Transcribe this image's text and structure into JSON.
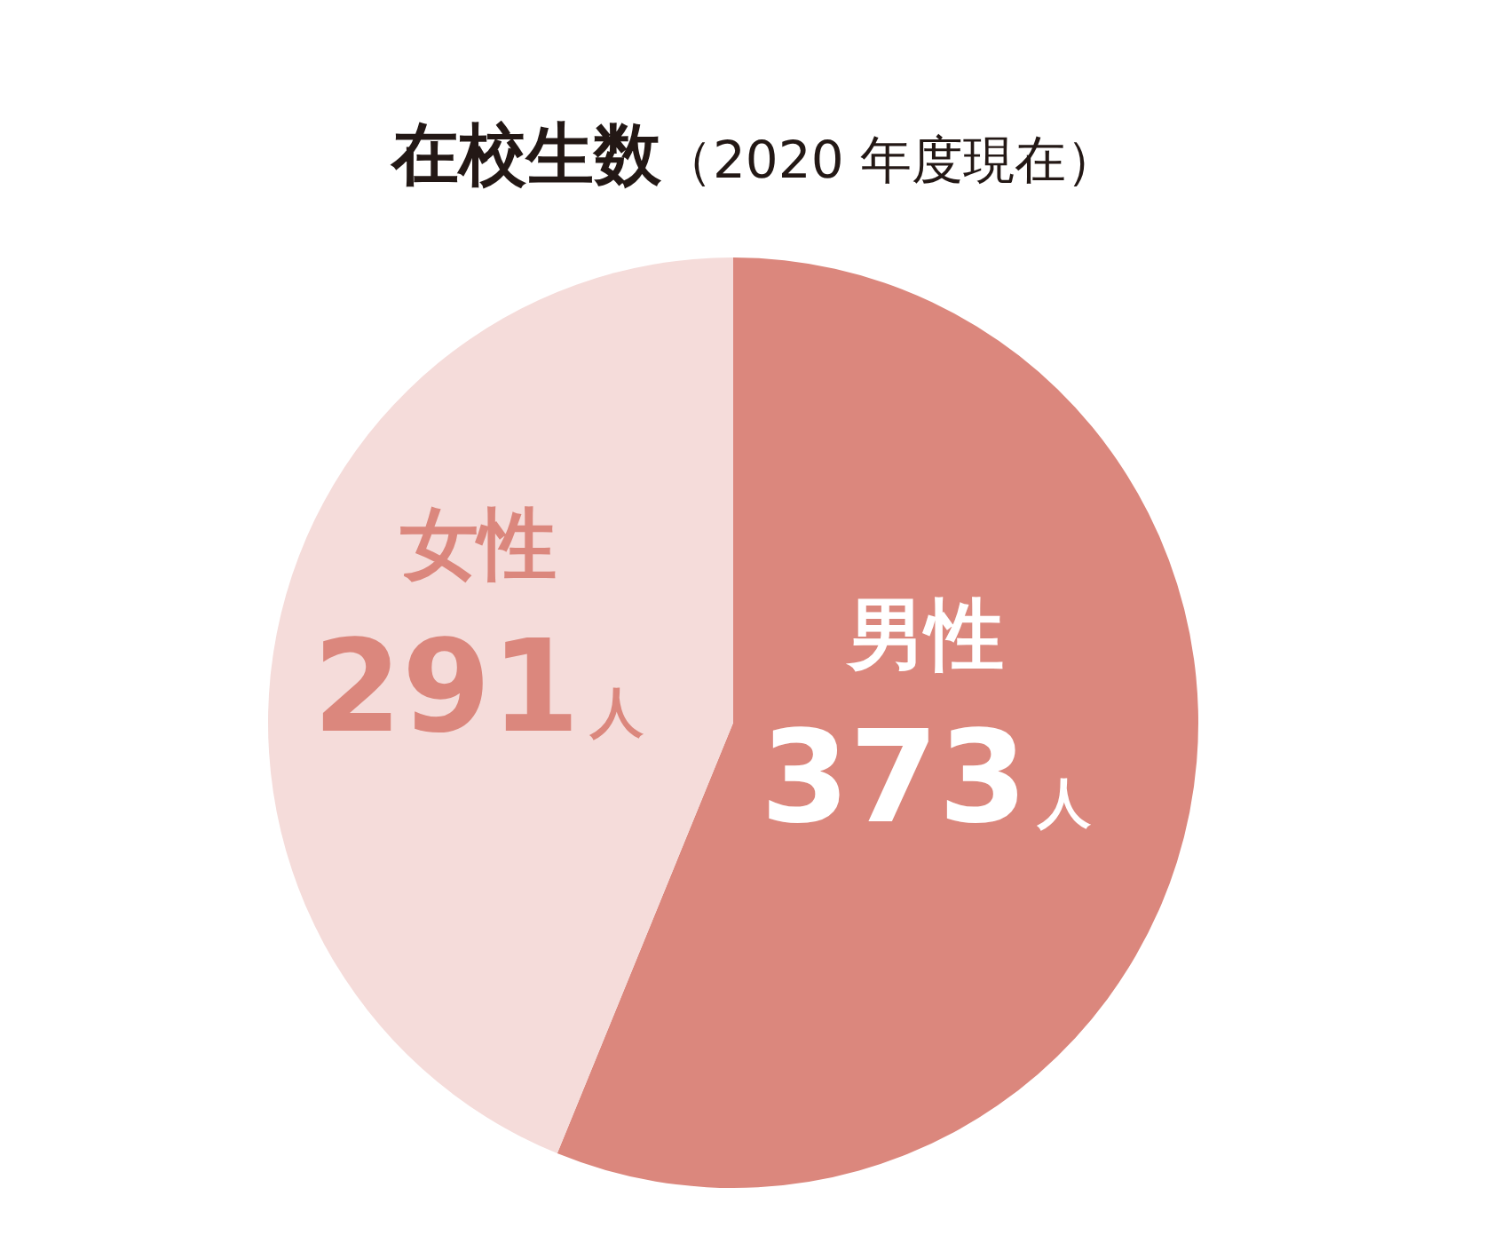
{
  "chart_data": {
    "type": "pie",
    "title": "在校生数",
    "subtitle": "（2020 年度現在）",
    "categories": [
      "男性",
      "女性"
    ],
    "values": [
      373,
      291
    ],
    "colors": [
      "#db877d",
      "#f5dcda"
    ],
    "value_labels": [
      "373人",
      "291人"
    ]
  }
}
